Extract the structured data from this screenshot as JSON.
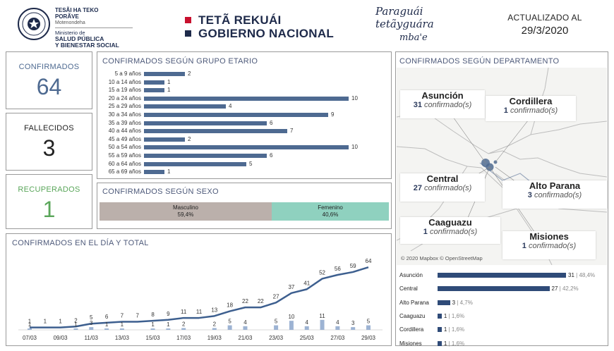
{
  "header": {
    "ministry_line1": "TESÃI HA TEKO",
    "ministry_line2": "PORÃVE",
    "ministry_line3": "Motenondeha",
    "ministry_line4": "Ministerio de",
    "ministry_line5": "SALUD PÚBLICA",
    "ministry_line6": "Y BIENESTAR SOCIAL",
    "gov_line1": "TETÃ REKUÁI",
    "gov_line2": "GOBIERNO NACIONAL",
    "slogan_line1": "Paraguái",
    "slogan_line2": "tetãyguára",
    "slogan_line3": "mba'e",
    "update_label": "ACTUALIZADO AL",
    "update_date": "29/3/2020",
    "colors": {
      "red": "#c8102e",
      "navy": "#1e2a4a"
    }
  },
  "kpis": {
    "confirmed_label": "CONFIRMADOS",
    "confirmed_value": "64",
    "confirmed_color": "#4e6a91",
    "deaths_label": "FALLECIDOS",
    "deaths_value": "3",
    "deaths_color": "#222222",
    "recovered_label": "RECUPERADOS",
    "recovered_value": "1",
    "recovered_color": "#5aa65a"
  },
  "age": {
    "title": "CONFIRMADOS SEGÚN GRUPO ETARIO",
    "color": "#4e6a91",
    "max": 10,
    "groups": [
      {
        "label": "5 a 9 años",
        "value": 2
      },
      {
        "label": "10 a 14 años",
        "value": 1
      },
      {
        "label": "15 a 19 años",
        "value": 1
      },
      {
        "label": "20 a 24 años",
        "value": 10
      },
      {
        "label": "25 a 29 años",
        "value": 4
      },
      {
        "label": "30 a 34 años",
        "value": 9
      },
      {
        "label": "35 a 39 años",
        "value": 6
      },
      {
        "label": "40 a 44 años",
        "value": 7
      },
      {
        "label": "45 a 49 años",
        "value": 2
      },
      {
        "label": "50 a 54 años",
        "value": 10
      },
      {
        "label": "55 a 59 años",
        "value": 6
      },
      {
        "label": "60 a 64 años",
        "value": 5
      },
      {
        "label": "65 a 69 años",
        "value": 1
      }
    ]
  },
  "sex": {
    "title": "CONFIRMADOS SEGÚN SEXO",
    "male_label": "Masculino",
    "male_pct": "59,4%",
    "male_share": 0.594,
    "male_color": "#bbb0ab",
    "female_label": "Femenino",
    "female_pct": "40,6%",
    "female_share": 0.406,
    "female_color": "#8fd1bf"
  },
  "department": {
    "title": "CONFIRMADOS SEGÚN DEPARTAMENTO",
    "map_credit": "© 2020 Mapbox © OpenStreetMap",
    "confirmed_word": "confirmado(s)",
    "cards": [
      {
        "name": "Asunción",
        "count": "31"
      },
      {
        "name": "Cordillera",
        "count": "1"
      },
      {
        "name": "Central",
        "count": "27"
      },
      {
        "name": "Alto Parana",
        "count": "3"
      },
      {
        "name": "Caaguazu",
        "count": "1"
      },
      {
        "name": "Misiones",
        "count": "1"
      }
    ],
    "bar_color": "#2f4b78",
    "max": 31,
    "bars": [
      {
        "label": "Asunción",
        "value": 31,
        "value_text": "31",
        "pct": "| 48,4%"
      },
      {
        "label": "Central",
        "value": 27,
        "value_text": "27",
        "pct": "| 42,2%"
      },
      {
        "label": "Alto Parana",
        "value": 3,
        "value_text": "3",
        "pct": "| 4,7%"
      },
      {
        "label": "Caaguazu",
        "value": 1,
        "value_text": "1",
        "pct": "| 1,6%"
      },
      {
        "label": "Cordillera",
        "value": 1,
        "value_text": "1",
        "pct": "| 1,6%"
      },
      {
        "label": "Misiones",
        "value": 1,
        "value_text": "1",
        "pct": "| 1,6%"
      }
    ]
  },
  "daily": {
    "title": "CONFIRMADOS EN EL DÍA Y TOTAL"
  },
  "chart_data": {
    "type": "line",
    "title": "CONFIRMADOS EN EL DÍA Y TOTAL",
    "x": [
      "07/03",
      "08/03",
      "09/03",
      "10/03",
      "11/03",
      "12/03",
      "13/03",
      "14/03",
      "15/03",
      "16/03",
      "17/03",
      "18/03",
      "19/03",
      "20/03",
      "21/03",
      "22/03",
      "23/03",
      "24/03",
      "25/03",
      "26/03",
      "27/03",
      "28/03",
      "29/03"
    ],
    "x_tick_labels": [
      "07/03",
      "09/03",
      "11/03",
      "13/03",
      "15/03",
      "17/03",
      "19/03",
      "21/03",
      "23/03",
      "25/03",
      "27/03",
      "29/03"
    ],
    "series": [
      {
        "type": "line",
        "values": [
          1,
          1,
          1,
          2,
          5,
          6,
          7,
          7,
          8,
          9,
          11,
          11,
          13,
          18,
          22,
          22,
          27,
          37,
          41,
          52,
          56,
          59,
          64
        ]
      },
      {
        "type": "bar",
        "values": [
          1,
          0,
          0,
          1,
          3,
          1,
          1,
          0,
          1,
          1,
          2,
          0,
          2,
          5,
          4,
          0,
          5,
          10,
          4,
          11,
          4,
          3,
          5
        ]
      }
    ],
    "line_color": "#3d5f8f",
    "bar_color": "#9db3d3",
    "ylim": [
      0,
      70
    ]
  }
}
